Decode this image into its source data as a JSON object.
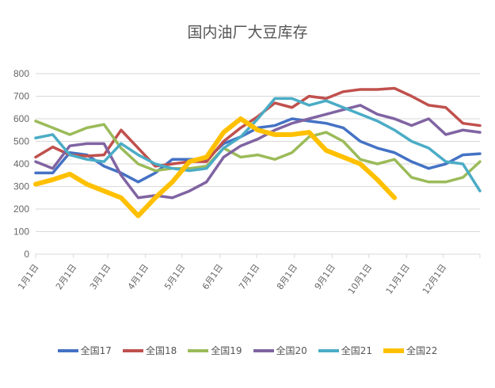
{
  "chart_data": {
    "type": "line",
    "title": "国内油厂大豆库存",
    "xlabel": "",
    "ylabel": "",
    "ylim": [
      0,
      800
    ],
    "yticks": [
      0,
      100,
      200,
      300,
      400,
      500,
      600,
      700,
      800
    ],
    "grid": true,
    "legend_position": "bottom",
    "xticks": [
      {
        "label": "1月1日",
        "date": "01-01"
      },
      {
        "label": "2月1日",
        "date": "02-01"
      },
      {
        "label": "3月1日",
        "date": "03-01"
      },
      {
        "label": "4月1日",
        "date": "04-01"
      },
      {
        "label": "5月1日",
        "date": "05-01"
      },
      {
        "label": "6月1日",
        "date": "06-01"
      },
      {
        "label": "7月1日",
        "date": "07-01"
      },
      {
        "label": "8月1日",
        "date": "08-01"
      },
      {
        "label": "9月1日",
        "date": "09-01"
      },
      {
        "label": "10月1日",
        "date": "10-01"
      },
      {
        "label": "11月1日",
        "date": "11-01"
      },
      {
        "label": "12月1日",
        "date": "12-01"
      }
    ],
    "x": [
      "01-01",
      "01-15",
      "01-29",
      "02-12",
      "02-26",
      "03-12",
      "03-26",
      "04-09",
      "04-23",
      "05-07",
      "05-21",
      "06-04",
      "06-18",
      "07-02",
      "07-16",
      "07-30",
      "08-13",
      "08-27",
      "09-10",
      "09-24",
      "10-08",
      "10-22",
      "11-05",
      "11-19",
      "12-03",
      "12-17",
      "12-31"
    ],
    "series": [
      {
        "name": "全国17",
        "color": "#4472C4",
        "values": [
          360,
          360,
          450,
          440,
          390,
          360,
          320,
          360,
          420,
          420,
          420,
          490,
          520,
          560,
          570,
          600,
          590,
          580,
          560,
          500,
          470,
          450,
          410,
          380,
          400,
          440,
          445
        ]
      },
      {
        "name": "全国18",
        "color": "#C0504D",
        "values": [
          430,
          475,
          440,
          435,
          440,
          550,
          470,
          390,
          400,
          410,
          410,
          500,
          560,
          610,
          670,
          650,
          700,
          690,
          720,
          730,
          730,
          735,
          700,
          660,
          650,
          580,
          570
        ]
      },
      {
        "name": "全国19",
        "color": "#9BBB59",
        "values": [
          590,
          560,
          530,
          560,
          575,
          470,
          400,
          370,
          380,
          380,
          390,
          470,
          430,
          440,
          420,
          450,
          520,
          540,
          500,
          420,
          400,
          420,
          340,
          320,
          320,
          340,
          410
        ]
      },
      {
        "name": "全国20",
        "color": "#8064A2",
        "values": [
          410,
          380,
          480,
          490,
          490,
          350,
          250,
          260,
          250,
          280,
          320,
          430,
          480,
          510,
          550,
          580,
          600,
          620,
          640,
          660,
          620,
          600,
          570,
          600,
          530,
          550,
          540
        ]
      },
      {
        "name": "全国21",
        "color": "#4BACC6",
        "values": [
          515,
          530,
          440,
          420,
          410,
          490,
          440,
          400,
          380,
          370,
          380,
          470,
          520,
          600,
          690,
          690,
          660,
          680,
          650,
          620,
          590,
          550,
          500,
          470,
          410,
          400,
          280
        ]
      },
      {
        "name": "全国22",
        "color": "#FFC000",
        "values": [
          310,
          330,
          355,
          310,
          280,
          250,
          170,
          250,
          320,
          410,
          430,
          540,
          600,
          550,
          530,
          530,
          540,
          460,
          430,
          400,
          330,
          250,
          null,
          null,
          null,
          null,
          null
        ]
      }
    ]
  }
}
